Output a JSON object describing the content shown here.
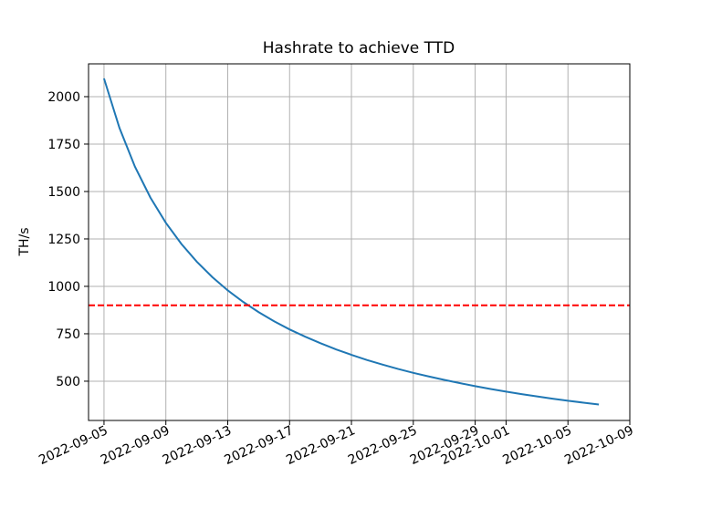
{
  "chart_data": {
    "type": "line",
    "title": "Hashrate to achieve TTD",
    "ylabel": "TH/s",
    "x": [
      "2022-09-05",
      "2022-09-06",
      "2022-09-07",
      "2022-09-08",
      "2022-09-09",
      "2022-09-10",
      "2022-09-11",
      "2022-09-12",
      "2022-09-13",
      "2022-09-14",
      "2022-09-15",
      "2022-09-16",
      "2022-09-17",
      "2022-09-18",
      "2022-09-19",
      "2022-09-20",
      "2022-09-21",
      "2022-09-22",
      "2022-09-23",
      "2022-09-24",
      "2022-09-25",
      "2022-09-26",
      "2022-09-27",
      "2022-09-28",
      "2022-09-29",
      "2022-09-30",
      "2022-10-01",
      "2022-10-02",
      "2022-10-03",
      "2022-10-04",
      "2022-10-05",
      "2022-10-06",
      "2022-10-07"
    ],
    "series": [
      {
        "color": "#1f77b4",
        "values": [
          2096,
          1835,
          1631,
          1468,
          1335,
          1224,
          1130,
          1049,
          979,
          918,
          864,
          816,
          773,
          735,
          700,
          668,
          639,
          612,
          588,
          565,
          544,
          525,
          507,
          490,
          474,
          459,
          445,
          432,
          420,
          408,
          397,
          387,
          377
        ]
      }
    ],
    "hline": {
      "value": 900,
      "color": "#ff0000"
    },
    "xlim": [
      "2022-09-04",
      "2022-10-09"
    ],
    "xticks": [
      "2022-09-05",
      "2022-09-09",
      "2022-09-13",
      "2022-09-17",
      "2022-09-21",
      "2022-09-25",
      "2022-09-29",
      "2022-10-01",
      "2022-10-05",
      "2022-10-09"
    ],
    "ylim": [
      293,
      2173
    ],
    "yticks": [
      500,
      750,
      1000,
      1250,
      1500,
      1750,
      2000
    ],
    "grid": true
  }
}
